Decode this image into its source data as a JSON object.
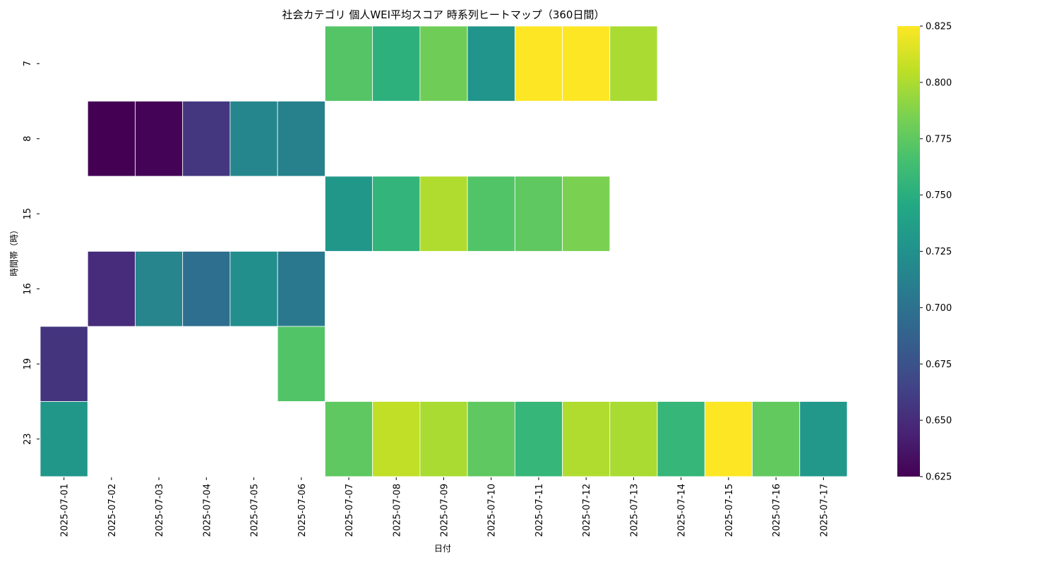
{
  "chart_data": {
    "type": "heatmap",
    "title": "社会カテゴリ 個人WEI平均スコア 時系列ヒートマップ（360日間）",
    "xlabel": "日付",
    "ylabel": "時間帯（時）",
    "x": [
      "2025-07-01",
      "2025-07-02",
      "2025-07-03",
      "2025-07-04",
      "2025-07-05",
      "2025-07-06",
      "2025-07-07",
      "2025-07-08",
      "2025-07-09",
      "2025-07-10",
      "2025-07-11",
      "2025-07-12",
      "2025-07-13",
      "2025-07-14",
      "2025-07-15",
      "2025-07-16",
      "2025-07-17"
    ],
    "y": [
      "7",
      "8",
      "15",
      "16",
      "19",
      "23"
    ],
    "values": [
      [
        null,
        null,
        null,
        null,
        null,
        null,
        0.771,
        0.752,
        0.781,
        0.728,
        0.825,
        0.825,
        0.799,
        null,
        null,
        null,
        null
      ],
      [
        null,
        0.625,
        0.626,
        0.657,
        0.717,
        0.712,
        null,
        null,
        null,
        null,
        null,
        null,
        null,
        null,
        null,
        null,
        null
      ],
      [
        null,
        null,
        null,
        null,
        null,
        null,
        0.73,
        0.755,
        0.801,
        0.77,
        0.775,
        0.785,
        null,
        null,
        null,
        null,
        null
      ],
      [
        null,
        0.65,
        0.715,
        0.697,
        0.723,
        0.705,
        null,
        null,
        null,
        null,
        null,
        null,
        null,
        null,
        null,
        null,
        null
      ],
      [
        0.655,
        null,
        null,
        null,
        null,
        0.77,
        null,
        null,
        null,
        null,
        null,
        null,
        null,
        null,
        null,
        null,
        null
      ],
      [
        0.73,
        null,
        null,
        null,
        null,
        null,
        0.775,
        0.806,
        0.799,
        0.775,
        0.757,
        0.801,
        0.799,
        0.757,
        0.825,
        0.776,
        0.731
      ]
    ],
    "colorbar": {
      "colormap": "viridis",
      "vmin": 0.625,
      "vmax": 0.825,
      "ticks": [
        "0.625",
        "0.650",
        "0.675",
        "0.700",
        "0.725",
        "0.750",
        "0.775",
        "0.800",
        "0.825"
      ]
    }
  }
}
